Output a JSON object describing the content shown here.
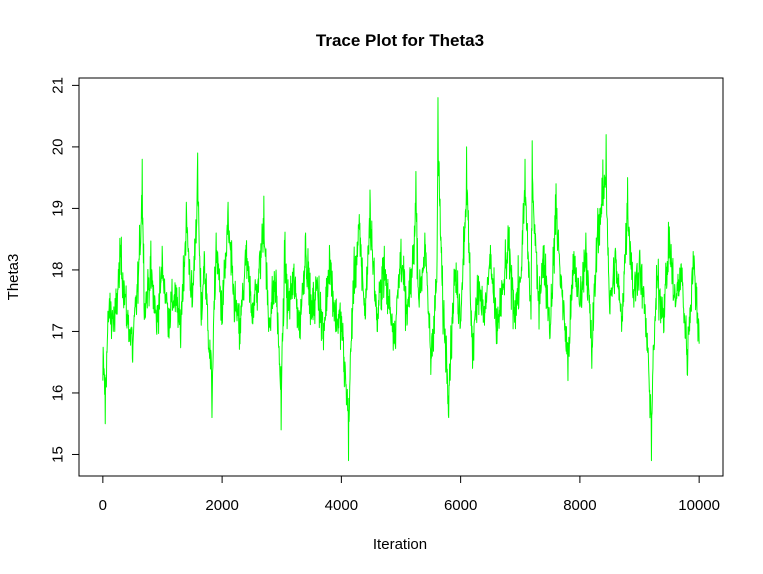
{
  "chart_data": {
    "type": "line",
    "title": "Trace Plot for Theta3",
    "xlabel": "Iteration",
    "ylabel": "Theta3",
    "xlim": [
      -400,
      10400
    ],
    "ylim": [
      14.65,
      21.12
    ],
    "x_ticks": [
      0,
      2000,
      4000,
      6000,
      8000,
      10000
    ],
    "x_tick_labels": [
      "0",
      "2000",
      "4000",
      "6000",
      "8000",
      "10000"
    ],
    "y_ticks": [
      15,
      16,
      17,
      18,
      19,
      20,
      21
    ],
    "y_tick_labels": [
      "15",
      "16",
      "17",
      "18",
      "19",
      "20",
      "21"
    ],
    "grid": false,
    "line_color": "#00ff00",
    "series": [
      {
        "iterations": 10000,
        "mean": 17.6,
        "sd": 0.5,
        "x": [
          0,
          40,
          100,
          200,
          300,
          400,
          500,
          600,
          660,
          700,
          800,
          900,
          1000,
          1100,
          1200,
          1300,
          1400,
          1500,
          1590,
          1650,
          1700,
          1830,
          1900,
          2000,
          2100,
          2200,
          2300,
          2400,
          2500,
          2600,
          2700,
          2780,
          2900,
          2990,
          3050,
          3100,
          3200,
          3300,
          3400,
          3500,
          3600,
          3700,
          3800,
          3900,
          4000,
          4050,
          4120,
          4200,
          4300,
          4400,
          4480,
          4600,
          4700,
          4800,
          4900,
          5000,
          5100,
          5200,
          5250,
          5300,
          5400,
          5500,
          5600,
          5620,
          5700,
          5800,
          5900,
          6000,
          6100,
          6200,
          6300,
          6400,
          6500,
          6600,
          6700,
          6800,
          6900,
          7000,
          7080,
          7180,
          7200,
          7300,
          7400,
          7500,
          7600,
          7700,
          7800,
          7900,
          8000,
          8100,
          8200,
          8300,
          8440,
          8500,
          8600,
          8700,
          8800,
          8900,
          9000,
          9100,
          9200,
          9250,
          9300,
          9400,
          9500,
          9600,
          9700,
          9800,
          9900,
          10000
        ],
        "y": [
          16.2,
          15.5,
          17.3,
          17.0,
          18.4,
          17.2,
          16.5,
          18.0,
          19.8,
          17.3,
          18.1,
          17.0,
          18.2,
          17.1,
          17.6,
          16.9,
          19.1,
          17.4,
          19.9,
          17.1,
          18.3,
          15.6,
          18.6,
          17.2,
          19.1,
          17.5,
          16.8,
          18.4,
          17.3,
          17.8,
          19.2,
          17.0,
          17.9,
          15.4,
          18.4,
          17.3,
          17.9,
          16.9,
          18.6,
          17.2,
          17.8,
          16.7,
          18.4,
          17.1,
          17.0,
          16.1,
          14.9,
          17.8,
          18.9,
          17.2,
          19.3,
          17.0,
          18.2,
          17.4,
          16.8,
          18.5,
          17.1,
          18.3,
          19.6,
          17.5,
          18.6,
          16.3,
          17.8,
          20.8,
          17.4,
          15.6,
          18.0,
          17.2,
          20.0,
          16.4,
          17.9,
          17.1,
          18.4,
          16.8,
          17.6,
          18.6,
          17.3,
          17.8,
          19.8,
          17.2,
          20.1,
          17.5,
          18.4,
          16.9,
          19.4,
          17.6,
          16.2,
          18.3,
          17.4,
          18.6,
          16.4,
          19.0,
          20.2,
          17.3,
          18.3,
          17.0,
          19.5,
          17.6,
          18.3,
          17.1,
          14.9,
          16.8,
          17.9,
          17.2,
          18.7,
          17.4,
          18.1,
          16.3,
          18.3,
          16.8
        ]
      }
    ]
  }
}
